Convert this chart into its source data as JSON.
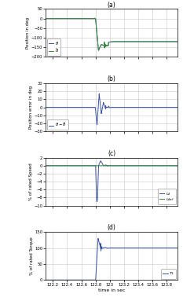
{
  "title_a": "(a)",
  "title_b": "(b)",
  "title_c": "(c)",
  "title_d": "(d)",
  "xlabel": "time in sec",
  "ylabel_a": "Position in deg",
  "ylabel_b": "Position error in deg",
  "ylabel_c": "% of rated Speed",
  "ylabel_d": "% of rated Torque",
  "xlim": [
    122.1,
    123.95
  ],
  "xticks": [
    122.2,
    122.4,
    122.6,
    122.8,
    123.0,
    123.2,
    123.4,
    123.6,
    123.8
  ],
  "ylim_a": [
    -200,
    50
  ],
  "yticks_a": [
    -200,
    -150,
    -100,
    -50,
    0,
    50
  ],
  "ylim_b": [
    -30,
    30
  ],
  "yticks_b": [
    -30,
    -20,
    -10,
    0,
    10,
    20,
    30
  ],
  "ylim_c": [
    -10,
    2
  ],
  "yticks_c": [
    -10,
    -8,
    -6,
    -4,
    -2,
    0,
    2
  ],
  "ylim_d": [
    0,
    150
  ],
  "yticks_d": [
    0,
    50,
    100,
    150
  ],
  "color_blue": "#3a52a0",
  "color_green": "#3a8c3a",
  "color_grid": "#c8c8c8",
  "step_time": 122.8,
  "steady_value_a": -120,
  "legend_a_theta": "$\\theta$",
  "legend_a_theta_hat": "$\\hat{\\theta}$",
  "legend_b": "$\\theta - \\hat{\\theta}$",
  "legend_c_omega": "$\\omega$",
  "legend_c_omega_ref": "$\\omega_{rcf}$",
  "legend_d": "$\\tau_L$"
}
